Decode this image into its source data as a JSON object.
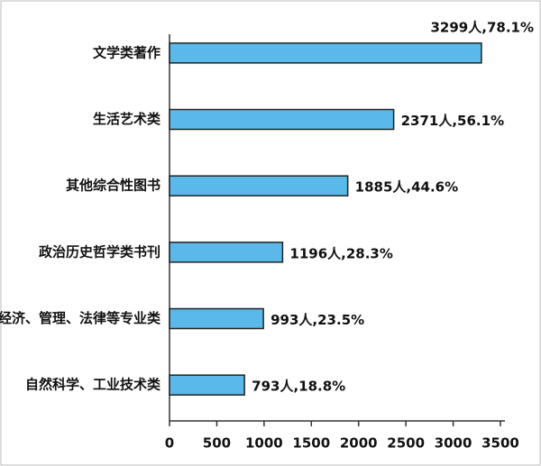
{
  "chart_data": {
    "type": "barh",
    "categories": [
      "文学类著作",
      "生活艺术类",
      "其他综合性图书",
      "政治历史哲学类书刊",
      "经济、管理、法律等专业类",
      "自然科学、工业技术类"
    ],
    "values": [
      3299,
      2371,
      1885,
      1196,
      993,
      793
    ],
    "value_labels": [
      "3299人,78.1%",
      "2371人,56.1%",
      "1885人,44.6%",
      "1196人,28.3%",
      "993人,23.5%",
      "793人,18.8%"
    ],
    "color": "#5bb9ea",
    "xlim": [
      0,
      3500
    ],
    "xticks": [
      0,
      500,
      1000,
      1500,
      2000,
      2500,
      3000,
      3500
    ],
    "grid": false
  }
}
